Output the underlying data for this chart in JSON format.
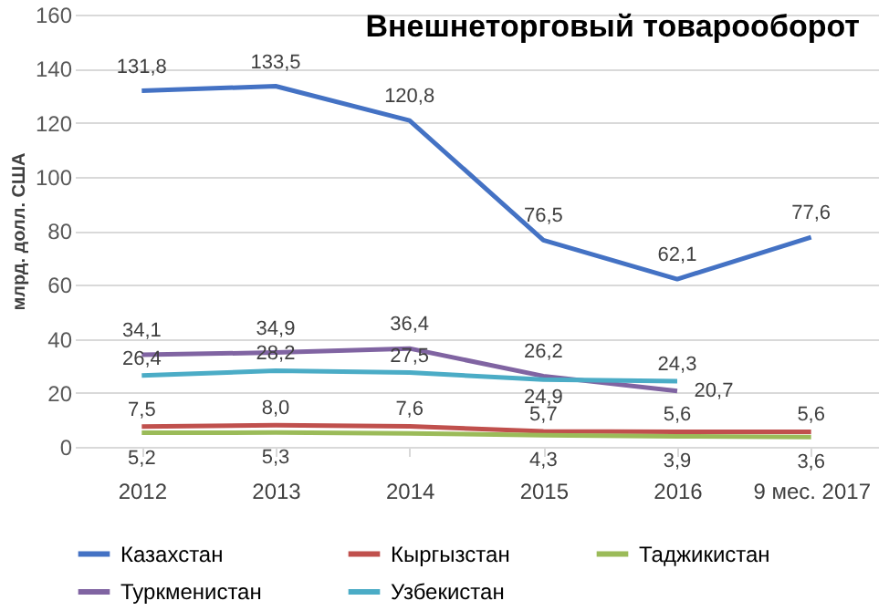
{
  "chart_data": {
    "type": "line",
    "title": "Внешнеторговый товарооборот",
    "ylabel": "млрд. долл. США",
    "categories": [
      "2012",
      "2013",
      "2014",
      "2015",
      "2016",
      "9 мес. 2017"
    ],
    "series": [
      {
        "name": "Казахстан",
        "color": "#4472c4",
        "values": [
          131.8,
          133.5,
          120.8,
          76.5,
          62.1,
          77.6
        ],
        "value_labels": [
          "131,8",
          "133,5",
          "120,8",
          "76,5",
          "62,1",
          "77,6"
        ]
      },
      {
        "name": "Кыргызстан",
        "color": "#c0504d",
        "values": [
          7.5,
          8.0,
          7.6,
          5.7,
          5.6,
          5.6
        ],
        "value_labels": [
          "7,5",
          "8,0",
          "7,6",
          "5,7",
          "5,6",
          "5,6"
        ]
      },
      {
        "name": "Таджикистан",
        "color": "#9bbb59",
        "values": [
          5.2,
          5.3,
          5.0,
          4.3,
          3.9,
          3.6
        ],
        "value_labels": [
          "5,2",
          "5,3",
          null,
          "4,3",
          "3,9",
          "3,6"
        ]
      },
      {
        "name": "Туркменистан",
        "color": "#8064a2",
        "values": [
          34.1,
          34.9,
          36.4,
          26.2,
          20.7,
          null
        ],
        "value_labels": [
          "34,1",
          "34,9",
          "36,4",
          "26,2",
          "20,7",
          null
        ]
      },
      {
        "name": "Узбекистан",
        "color": "#4bacc6",
        "values": [
          26.4,
          28.2,
          27.5,
          24.9,
          24.3,
          null
        ],
        "value_labels": [
          "26,4",
          "28,2",
          "27,5",
          "24,9",
          "24,3",
          null
        ]
      }
    ],
    "ylim": [
      0,
      160
    ],
    "yticks": [
      0,
      20,
      40,
      60,
      80,
      100,
      120,
      140,
      160
    ],
    "grid": "y",
    "legend": "bottom",
    "marker": "none",
    "line_style": "solid"
  }
}
